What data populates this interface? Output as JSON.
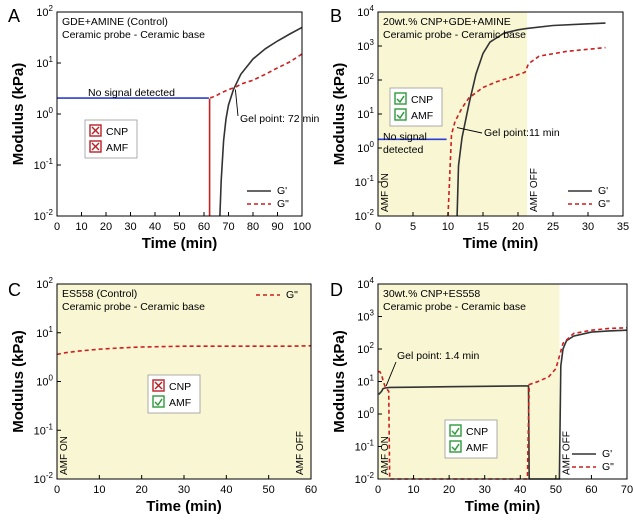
{
  "chart_data": [
    {
      "type": "line",
      "panel": "A",
      "title_lines": [
        "GDE+AMINE (Control)",
        "Ceramic probe - Ceramic base"
      ],
      "xlabel": "Time (min)",
      "ylabel": "Modulus (kPa)",
      "xlim": [
        0,
        100
      ],
      "ylim": [
        0.01,
        100
      ],
      "yscale": "log",
      "xticks": [
        0,
        10,
        20,
        30,
        40,
        50,
        60,
        70,
        80,
        90,
        100
      ],
      "yticks": [
        "10-2",
        "10-1",
        "100",
        "101",
        "102"
      ],
      "shaded": null,
      "legend": {
        "position": "bottom-right",
        "entries": [
          "G'",
          "G\""
        ]
      },
      "series": [
        {
          "name": "G'",
          "style": "solid",
          "color": "#333333",
          "x": [
            66.5,
            67,
            68,
            69,
            70,
            72,
            75,
            80,
            85,
            90,
            95,
            100
          ],
          "y": [
            0.01,
            0.05,
            0.3,
            0.8,
            1.5,
            3,
            6,
            12,
            19,
            27,
            37,
            50
          ]
        },
        {
          "name": "G\"",
          "style": "dashed",
          "color": "#cc1f1f",
          "x": [
            62.5,
            63,
            65,
            67,
            70,
            73,
            76,
            80,
            85,
            90,
            95,
            100
          ],
          "y": [
            2.1,
            2.1,
            2.3,
            2.6,
            3.0,
            3.4,
            4.0,
            4.6,
            6.0,
            8.0,
            10.5,
            15
          ]
        },
        {
          "name": "G\" pre-signal drop",
          "style": "solid",
          "color": "#cc1f1f",
          "x": [
            62.3,
            62.3
          ],
          "y": [
            2.0,
            0.01
          ]
        },
        {
          "name": "No signal line",
          "style": "solid",
          "color": "#2a3fd8",
          "x": [
            0,
            62
          ],
          "y": [
            2.05,
            2.05
          ]
        }
      ],
      "annotations": [
        {
          "text": "No signal detected",
          "color": "#2a3fd8"
        },
        {
          "text": "Gel point: 72 min",
          "x": 72,
          "y": 3.5
        }
      ],
      "status_box": {
        "items": [
          {
            "label": "CNP",
            "on": false
          },
          {
            "label": "AMF",
            "on": false
          }
        ]
      }
    },
    {
      "type": "line",
      "panel": "B",
      "title_lines": [
        "20wt.% CNP+GDE+AMINE",
        "Ceramic probe - Ceramic base"
      ],
      "xlabel": "Time (min)",
      "ylabel": "Modulus (kPa)",
      "xlim": [
        0,
        35
      ],
      "ylim": [
        0.01,
        10000
      ],
      "yscale": "log",
      "xticks": [
        0,
        5,
        10,
        15,
        20,
        25,
        30,
        35
      ],
      "yticks": [
        "10-2",
        "10-1",
        "100",
        "101",
        "102",
        "103",
        "104"
      ],
      "shaded": [
        0,
        21.3
      ],
      "rotated_labels": [
        "AMF ON",
        "AMF OFF"
      ],
      "legend": {
        "position": "bottom-right",
        "entries": [
          "G'",
          "G\""
        ]
      },
      "series": [
        {
          "name": "G'",
          "style": "solid",
          "color": "#333333",
          "x": [
            11.3,
            11.5,
            12,
            13,
            14,
            15,
            16,
            18,
            20,
            21.3,
            25,
            30,
            32.5
          ],
          "y": [
            0.01,
            0.3,
            2,
            20,
            150,
            600,
            1300,
            2400,
            3000,
            3300,
            4000,
            4500,
            4700
          ]
        },
        {
          "name": "G\"",
          "style": "dashed",
          "color": "#cc1f1f",
          "x": [
            10,
            10.5,
            11,
            12,
            13,
            15,
            17,
            19,
            21,
            21.5,
            23,
            27,
            32.5
          ],
          "y": [
            0.01,
            2.5,
            6,
            15,
            30,
            60,
            90,
            120,
            170,
            300,
            500,
            700,
            900
          ]
        },
        {
          "name": "No signal line",
          "style": "solid",
          "color": "#2a3fd8",
          "x": [
            0,
            9.8
          ],
          "y": [
            1.8,
            1.8
          ]
        }
      ],
      "annotations": [
        {
          "text": "No signal",
          "color": "#2a3fd8"
        },
        {
          "text": "detected",
          "color": "#2a3fd8"
        },
        {
          "text": "Gel point:11 min",
          "x": 11,
          "y": 4
        }
      ],
      "status_box": {
        "items": [
          {
            "label": "CNP",
            "on": true
          },
          {
            "label": "AMF",
            "on": true
          }
        ]
      }
    },
    {
      "type": "line",
      "panel": "C",
      "title_lines": [
        "ES558 (Control)",
        "Ceramic probe - Ceramic base"
      ],
      "xlabel": "Time (min)",
      "ylabel": "Modulus (kPa)",
      "xlim": [
        0,
        60
      ],
      "ylim": [
        0.01,
        100
      ],
      "yscale": "log",
      "xticks": [
        0,
        10,
        20,
        30,
        40,
        50,
        60
      ],
      "yticks": [
        "10-2",
        "10-1",
        "100",
        "101",
        "102"
      ],
      "shaded": [
        0,
        60
      ],
      "rotated_labels": [
        "AMF ON",
        "AMF OFF"
      ],
      "legend": {
        "position": "top-right",
        "entries": [
          "G\""
        ]
      },
      "series": [
        {
          "name": "G\"",
          "style": "dashed",
          "color": "#cc1f1f",
          "x": [
            0,
            2,
            5,
            10,
            15,
            20,
            25,
            30,
            35,
            40,
            45,
            50,
            55,
            60
          ],
          "y": [
            3.6,
            3.9,
            4.2,
            4.6,
            4.9,
            5.1,
            5.2,
            5.3,
            5.3,
            5.3,
            5.3,
            5.3,
            5.3,
            5.4
          ]
        }
      ],
      "annotations": [],
      "status_box": {
        "items": [
          {
            "label": "CNP",
            "on": false
          },
          {
            "label": "AMF",
            "on": true
          }
        ]
      }
    },
    {
      "type": "line",
      "panel": "D",
      "title_lines": [
        "30wt.% CNP+ES558",
        "Ceramic probe - Ceramic base"
      ],
      "xlabel": "Time (min)",
      "ylabel": "Modulus (kPa)",
      "xlim": [
        0,
        70
      ],
      "ylim": [
        0.01,
        10000
      ],
      "yscale": "log",
      "xticks": [
        0,
        10,
        20,
        30,
        40,
        50,
        60,
        70
      ],
      "yticks": [
        "10-2",
        "10-1",
        "100",
        "101",
        "102",
        "103",
        "104"
      ],
      "shaded": [
        0,
        51
      ],
      "rotated_labels": [
        "AMF ON",
        "AMF OFF"
      ],
      "legend": {
        "position": "bottom-right",
        "entries": [
          "G'",
          "G\""
        ]
      },
      "series": [
        {
          "name": "G'",
          "style": "solid",
          "color": "#333333",
          "x": [
            0.2,
            1,
            1.4,
            2,
            3,
            3.3,
            10,
            20,
            30,
            40,
            42.3,
            42.5,
            51,
            51.4,
            52,
            53,
            55,
            60,
            65,
            70
          ],
          "y": [
            4,
            5,
            6,
            6.3,
            6.5,
            6.6,
            6.7,
            6.9,
            7.1,
            7.3,
            7.3,
            0.01,
            0.01,
            30,
            100,
            180,
            250,
            330,
            360,
            380
          ]
        },
        {
          "name": "G\"",
          "style": "dashed",
          "color": "#cc1f1f",
          "x": [
            0,
            0.5,
            1,
            1.5,
            2,
            3,
            3.3,
            3.5,
            42,
            42.5,
            45,
            48,
            50,
            51,
            52,
            55,
            60,
            65,
            70
          ],
          "y": [
            20,
            20,
            16,
            10,
            7,
            5,
            0.01,
            0.01,
            0.01,
            8,
            10,
            14,
            25,
            60,
            150,
            300,
            380,
            430,
            450
          ]
        }
      ],
      "annotations": [
        {
          "text": "Gel point: 1.4 min",
          "x": 1.4,
          "y": 6
        }
      ],
      "status_box": {
        "items": [
          {
            "label": "CNP",
            "on": true
          },
          {
            "label": "AMF",
            "on": true
          }
        ]
      }
    }
  ],
  "colors": {
    "shade": "#f8f6d3",
    "g_prime": "#333333",
    "g_dprime": "#cc1f1f",
    "no_signal": "#2a3fd8",
    "check_on": "#2e9a3a",
    "check_off": "#b82025"
  }
}
